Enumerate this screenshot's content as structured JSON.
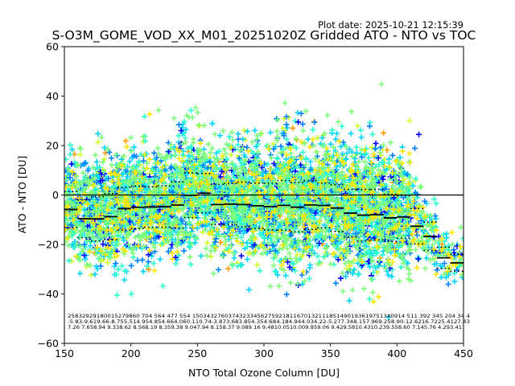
{
  "plot_date": "Plot date: 2025-10-21 12:15:39",
  "chart_data": {
    "type": "scatter",
    "title": "S-O3M_GOME_VOD_XX_M01_20251020Z Gridded ATO - NTO vs TOC",
    "xlabel": "NTO Total Ozone Column [DU]",
    "ylabel": "ATO - NTO [DU]",
    "xlim": [
      150,
      450
    ],
    "ylim": [
      -60,
      60
    ],
    "xticks": [
      "150",
      "200",
      "250",
      "300",
      "350",
      "400",
      "450"
    ],
    "yticks": [
      "60",
      "40",
      "20",
      "0",
      "−20",
      "−40",
      "−60"
    ],
    "grid": false,
    "zero_line": 0,
    "bin_width": 10,
    "bin_starts": [
      150,
      160,
      170,
      180,
      190,
      200,
      210,
      220,
      230,
      240,
      250,
      260,
      270,
      280,
      290,
      300,
      310,
      320,
      330,
      340,
      350,
      360,
      370,
      380,
      390,
      400,
      410,
      420,
      430,
      440
    ],
    "median": [
      -5.83,
      -9.61,
      -9.66,
      -8.75,
      -5.51,
      -4.95,
      -4.85,
      -4.66,
      -4.06,
      -0.11,
      0.74,
      -3.87,
      -3.68,
      -3.85,
      -4.35,
      -4.68,
      -4.18,
      -4.94,
      -4.03,
      -4.22,
      -5.27,
      -7.34,
      -8.15,
      -7.96,
      -9.25,
      -8.9,
      -12.62,
      -16.72,
      -25.41,
      -27.43
    ],
    "std": [
      7.26,
      7.65,
      8.94,
      9.33,
      8.62,
      8.56,
      8.19,
      8.35,
      9.38,
      9.04,
      7.94,
      8.15,
      8.37,
      9.08,
      9.16,
      9.48,
      10.05,
      10.0,
      9.85,
      9.06,
      9.42,
      9.58,
      10.43,
      10.23,
      9.55,
      8.6,
      7.14,
      5.76,
      4.29,
      3.41
    ],
    "colors": [
      "#0000ff",
      "#0080ff",
      "#00d4ff",
      "#29ffce",
      "#7dff7a",
      "#ceff29",
      "#ffe600",
      "#ff9a00"
    ],
    "annotation_rows": [
      "25832929180015279860 704 564 477 554 15034327603743233456275921811670132111851490193619751340914 511 392 345 204 34 4",
      "-5.83-9.619.66-8.755.514.954.854.664.060.110.74-3.873.683.854.354.684.184.944.034.22-5.277.348.157.969.258.90-12.6216.7225.4127.43",
      "7.26 7.658.94 9.338.62 8.568.19 8.359.38 9.047.94 8.158.37 9.089.16 9.4810.0510.009.859.06 9.429.5810.4310.239.558.60 7.145.76 4.293.41"
    ]
  }
}
